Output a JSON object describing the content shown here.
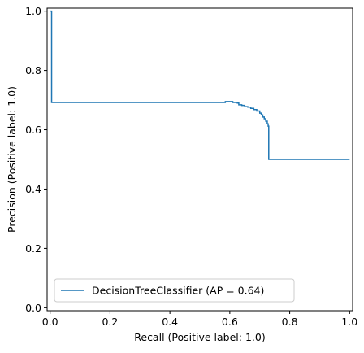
{
  "chart_data": {
    "type": "line",
    "title": "",
    "xlabel": "Recall (Positive label: 1.0)",
    "ylabel": "Precision (Positive label: 1.0)",
    "xlim": [
      -0.01,
      1.01
    ],
    "ylim": [
      -0.01,
      1.01
    ],
    "xticks": [
      0.0,
      0.2,
      0.4,
      0.6,
      0.8,
      1.0
    ],
    "xtick_labels": [
      "0.0",
      "0.2",
      "0.4",
      "0.6",
      "0.8",
      "1.0"
    ],
    "yticks": [
      0.0,
      0.2,
      0.4,
      0.6,
      0.8,
      1.0
    ],
    "ytick_labels": [
      "0.0",
      "0.2",
      "0.4",
      "0.6",
      "0.8",
      "1.0"
    ],
    "grid": false,
    "legend_position": "lower-left",
    "series": [
      {
        "name": "DecisionTreeClassifier (AP = 0.64)",
        "color": "#1f77b4",
        "step": "post",
        "points": [
          [
            0.0,
            1.0
          ],
          [
            0.005,
            1.0
          ],
          [
            0.005,
            0.692
          ],
          [
            0.58,
            0.692
          ],
          [
            0.585,
            0.695
          ],
          [
            0.6,
            0.695
          ],
          [
            0.61,
            0.692
          ],
          [
            0.625,
            0.69
          ],
          [
            0.63,
            0.684
          ],
          [
            0.64,
            0.682
          ],
          [
            0.65,
            0.678
          ],
          [
            0.66,
            0.676
          ],
          [
            0.67,
            0.672
          ],
          [
            0.68,
            0.668
          ],
          [
            0.69,
            0.663
          ],
          [
            0.7,
            0.656
          ],
          [
            0.705,
            0.65
          ],
          [
            0.71,
            0.643
          ],
          [
            0.715,
            0.637
          ],
          [
            0.72,
            0.629
          ],
          [
            0.725,
            0.62
          ],
          [
            0.728,
            0.612
          ],
          [
            0.73,
            0.605
          ],
          [
            0.73,
            0.5
          ],
          [
            1.0,
            0.5
          ]
        ]
      }
    ]
  }
}
